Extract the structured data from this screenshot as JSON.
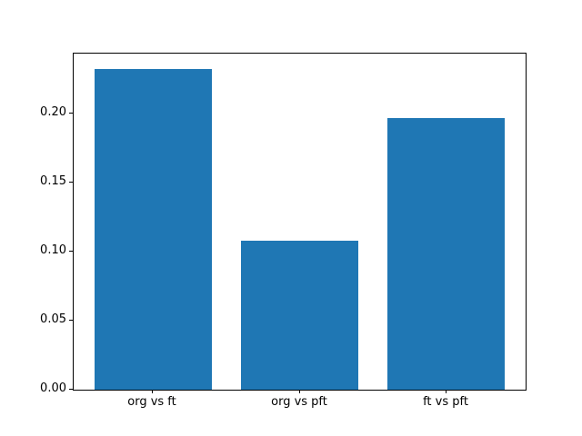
{
  "figure": {
    "background": "#ffffff"
  },
  "chart_data": {
    "type": "bar",
    "categories": [
      "org vs ft",
      "org vs pft",
      "ft vs pft"
    ],
    "values": [
      0.232,
      0.108,
      0.197
    ],
    "title": "",
    "xlabel": "",
    "ylabel": "",
    "ylim": [
      0,
      0.2434
    ],
    "xlim": [
      -0.54,
      2.54
    ],
    "bar_width_units": 0.8,
    "y_ticks": [
      0.0,
      0.05,
      0.1,
      0.15,
      0.2
    ],
    "y_tick_labels": [
      "0.00",
      "0.05",
      "0.10",
      "0.15",
      "0.20"
    ],
    "bar_color": "#1f77b4",
    "axis_color": "#000000",
    "grid": false,
    "legend_position": "none"
  }
}
